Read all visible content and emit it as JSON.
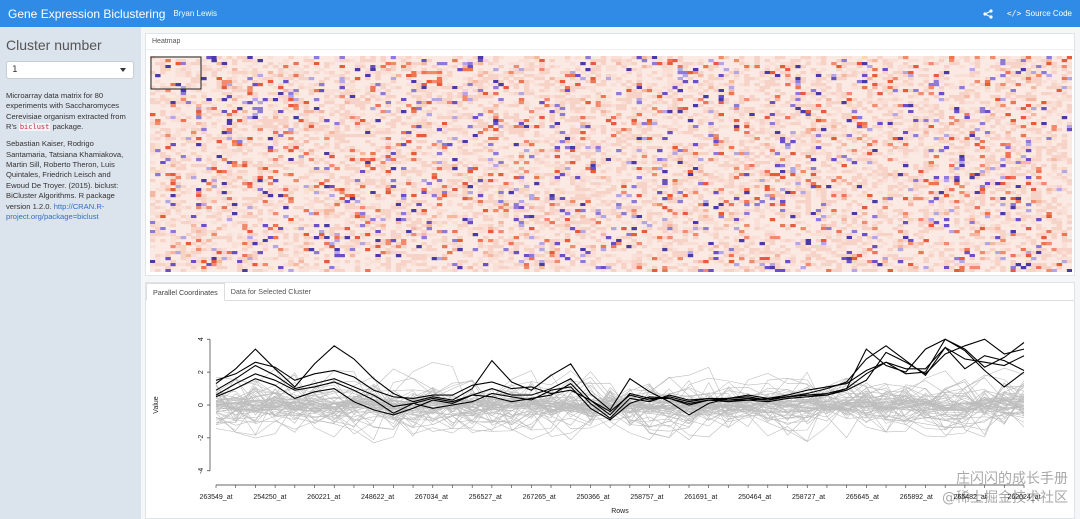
{
  "app": {
    "title": "Gene Expression Biclustering",
    "author": "Bryan Lewis",
    "source_code": "Source Code"
  },
  "sidebar": {
    "heading": "Cluster number",
    "select_value": "1",
    "desc1_a": "Microarray data matrix for 80 experiments with Saccharomyces Cerevisiae organism extracted from R's ",
    "desc1_code": "biclust",
    "desc1_b": " package.",
    "citation": "Sebastian Kaiser, Rodrigo Santamaria, Tatsiana Khamiakova, Martin Sill, Roberto Theron, Luis Quintales, Friedrich Leisch and Ewoud De Troyer. (2015). biclust: BiCluster Algorithms. R package version 1.2.0. ",
    "link": "http://CRAN.R-project.org/package=biclust"
  },
  "heatmap": {
    "label": "Heatmap"
  },
  "tabs": [
    "Parallel Coordinates",
    "Data for Selected Cluster"
  ],
  "watermark": {
    "line1": "庄闪闪的成长手册",
    "line2": "@稀土掘金技术社区"
  },
  "chart_data": {
    "type": "line",
    "xlabel": "Rows",
    "ylabel": "Value",
    "yticks": [
      4,
      2,
      0,
      -2,
      -4
    ],
    "ylim": [
      -4.5,
      4.5
    ],
    "x_tick_labels": [
      "263549_at",
      "254250_at",
      "260221_at",
      "248622_at",
      "267034_at",
      "256527_at",
      "267265_at",
      "250366_at",
      "258757_at",
      "261691_at",
      "250464_at",
      "258727_at",
      "265645_at",
      "265892_at",
      "265482_at",
      "262024_at"
    ],
    "n_points": 42,
    "series": [
      {
        "color": "#000000",
        "values": [
          1.3,
          2.2,
          3.4,
          2.2,
          1.1,
          2.5,
          3.6,
          2.8,
          1.6,
          0.7,
          0.2,
          0.5,
          0.3,
          1.0,
          2.7,
          1.4,
          0.9,
          1.8,
          2.5,
          0.7,
          -0.3,
          1.6,
          0.8,
          0.2,
          -0.6,
          0.1,
          0.4,
          0.5,
          0.3,
          0.5,
          0.7,
          1.0,
          1.4,
          2.8,
          3.6,
          2.7,
          1.8,
          3.5,
          2.2,
          3.0,
          2.7,
          2.1
        ]
      },
      {
        "color": "#000000",
        "values": [
          1.5,
          1.9,
          2.6,
          2.3,
          1.5,
          1.9,
          2.1,
          1.7,
          0.9,
          0.5,
          0.4,
          0.6,
          0.6,
          1.2,
          1.4,
          1.0,
          1.1,
          0.7,
          0.9,
          0.3,
          -0.4,
          0.6,
          0.3,
          0.5,
          0.2,
          0.4,
          0.4,
          0.6,
          0.4,
          0.6,
          0.9,
          1.1,
          1.3,
          2.1,
          2.6,
          1.9,
          2.0,
          4.0,
          3.4,
          2.3,
          2.9,
          3.8
        ]
      },
      {
        "color": "#000000",
        "values": [
          0.6,
          1.3,
          1.9,
          1.5,
          0.9,
          1.1,
          1.4,
          0.9,
          0.3,
          -0.5,
          0.1,
          -0.2,
          0.0,
          0.2,
          0.7,
          0.5,
          0.3,
          0.9,
          1.1,
          -0.2,
          -0.9,
          0.1,
          0.5,
          0.4,
          0.0,
          0.3,
          0.2,
          0.3,
          0.2,
          0.4,
          0.5,
          0.6,
          0.9,
          1.5,
          3.2,
          2.6,
          1.9,
          3.1,
          3.6,
          4.0,
          3.1,
          3.4
        ]
      },
      {
        "color": "#000000",
        "values": [
          0.5,
          1.0,
          1.6,
          1.2,
          0.4,
          0.8,
          1.0,
          0.2,
          -0.3,
          -0.6,
          -0.2,
          0.3,
          0.1,
          0.6,
          0.5,
          0.2,
          0.4,
          0.6,
          1.3,
          0.1,
          -0.8,
          0.4,
          0.2,
          0.6,
          0.3,
          0.4,
          0.3,
          0.3,
          0.4,
          0.5,
          0.6,
          0.6,
          1.0,
          3.4,
          2.4,
          2.0,
          3.4,
          4.0,
          3.3,
          2.1,
          1.1,
          2.0
        ]
      },
      {
        "color": "#000000",
        "values": [
          0.9,
          1.6,
          2.4,
          1.8,
          1.0,
          1.3,
          1.6,
          1.1,
          0.6,
          -0.1,
          0.1,
          0.4,
          0.2,
          0.6,
          1.0,
          0.6,
          0.6,
          1.0,
          1.6,
          0.3,
          -0.6,
          0.7,
          0.4,
          0.4,
          0.1,
          0.3,
          0.3,
          0.4,
          0.3,
          0.5,
          0.6,
          0.7,
          1.0,
          1.9,
          2.6,
          2.2,
          2.2,
          3.5,
          2.8,
          2.6,
          2.4,
          3.0
        ]
      }
    ],
    "gray_series_count": 55,
    "gray_color": "#bdbdbd"
  }
}
